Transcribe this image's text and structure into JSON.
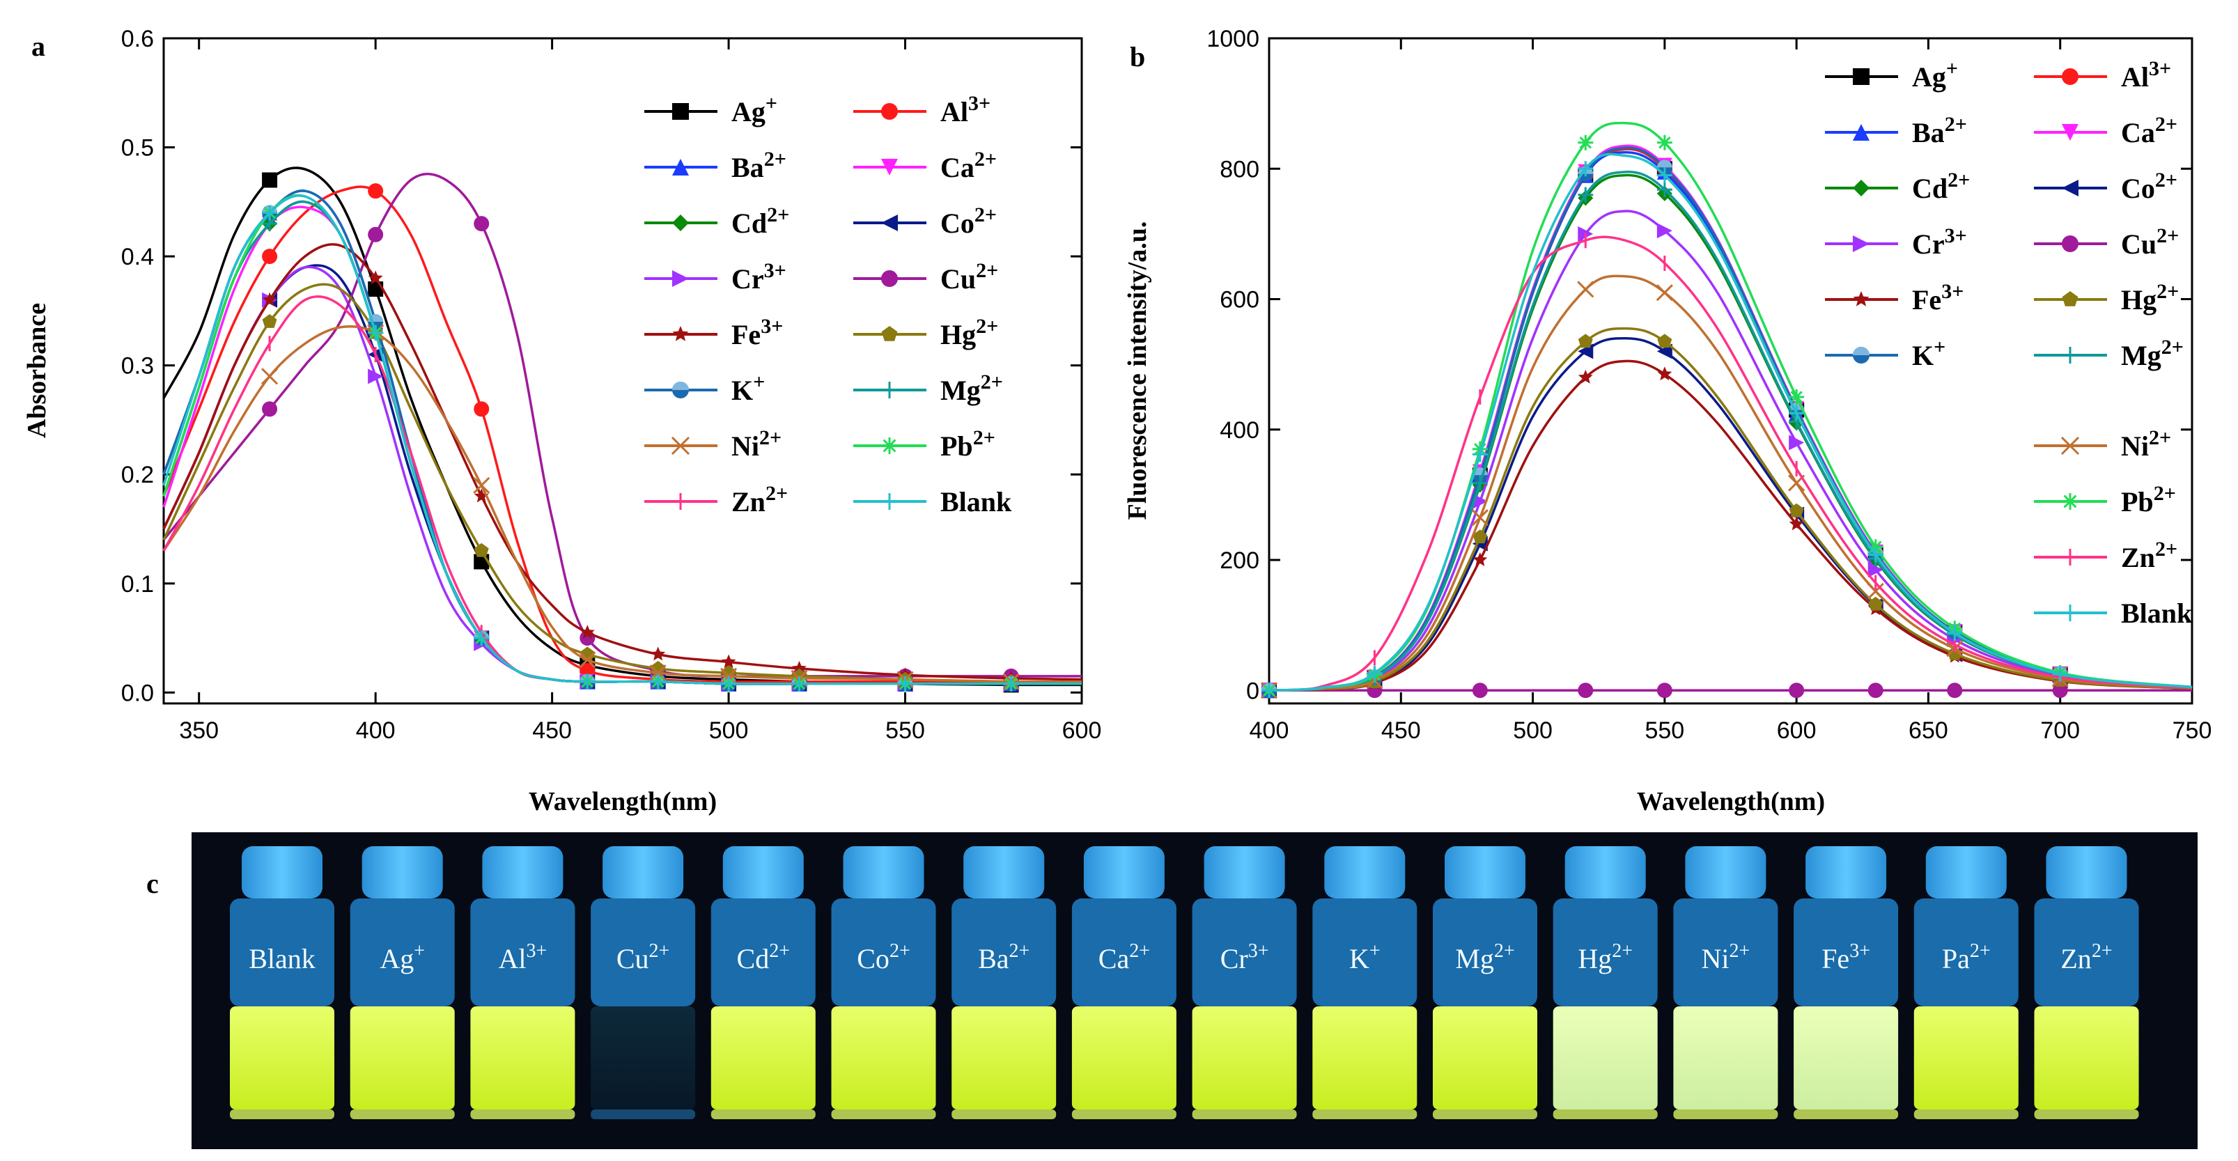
{
  "colors": {
    "Ag+": "#000000",
    "Al3+": "#ff1a1a",
    "Ba2+": "#1a3cff",
    "Ca2+": "#ff22ff",
    "Cd2+": "#0a8a0a",
    "Co2+": "#0a1a8a",
    "Cr3+": "#a033ff",
    "Cu2+": "#a01a9a",
    "Fe3+": "#a01010",
    "Hg2+": "#8a7a10",
    "K+": "#1a6ab0",
    "Mg2+": "#109a9a",
    "Ni2+": "#c07030",
    "Pb2+": "#22dd55",
    "Zn2+": "#ff3388",
    "Blank": "#22c0cc"
  },
  "chart_data": [
    {
      "id": "a",
      "type": "line",
      "panel_label": "a",
      "xlabel": "Wavelength(nm)",
      "ylabel": "Absorbance",
      "xlim": [
        340,
        600
      ],
      "ylim": [
        -0.01,
        0.6
      ],
      "xticks": [
        350,
        400,
        450,
        500,
        550,
        600
      ],
      "yticks": [
        0.0,
        0.1,
        0.2,
        0.3,
        0.4,
        0.5,
        0.6
      ],
      "ytick_labels": [
        "0.0",
        "0.1",
        "0.2",
        "0.3",
        "0.4",
        "0.5",
        "0.6"
      ],
      "x": [
        340,
        350,
        360,
        370,
        380,
        390,
        400,
        410,
        420,
        430,
        440,
        450,
        460,
        480,
        500,
        520,
        550,
        580,
        600
      ],
      "series": [
        {
          "name": "Ag+",
          "marker": "square",
          "values": [
            0.27,
            0.33,
            0.42,
            0.47,
            0.48,
            0.45,
            0.37,
            0.27,
            0.19,
            0.12,
            0.07,
            0.04,
            0.025,
            0.015,
            0.012,
            0.01,
            0.008,
            0.007,
            0.007
          ]
        },
        {
          "name": "Al3+",
          "marker": "circle",
          "values": [
            0.18,
            0.26,
            0.34,
            0.4,
            0.44,
            0.46,
            0.46,
            0.42,
            0.34,
            0.26,
            0.14,
            0.05,
            0.02,
            0.012,
            0.01,
            0.01,
            0.01,
            0.01,
            0.01
          ]
        },
        {
          "name": "Ba2+",
          "marker": "triangle-up",
          "values": [
            0.2,
            0.29,
            0.39,
            0.44,
            0.46,
            0.43,
            0.34,
            0.22,
            0.11,
            0.05,
            0.02,
            0.012,
            0.01,
            0.01,
            0.008,
            0.008,
            0.008,
            0.008,
            0.008
          ]
        },
        {
          "name": "Ca2+",
          "marker": "triangle-down",
          "values": [
            0.17,
            0.27,
            0.37,
            0.43,
            0.445,
            0.42,
            0.33,
            0.21,
            0.11,
            0.05,
            0.02,
            0.012,
            0.01,
            0.01,
            0.008,
            0.008,
            0.008,
            0.008,
            0.008
          ]
        },
        {
          "name": "Cd2+",
          "marker": "diamond",
          "values": [
            0.18,
            0.28,
            0.38,
            0.43,
            0.45,
            0.42,
            0.33,
            0.21,
            0.11,
            0.05,
            0.02,
            0.012,
            0.01,
            0.01,
            0.008,
            0.008,
            0.008,
            0.008,
            0.008
          ]
        },
        {
          "name": "Co2+",
          "marker": "triangle-left",
          "values": [
            0.15,
            0.22,
            0.3,
            0.36,
            0.39,
            0.38,
            0.31,
            0.2,
            0.11,
            0.05,
            0.02,
            0.012,
            0.01,
            0.01,
            0.008,
            0.008,
            0.008,
            0.008,
            0.008
          ]
        },
        {
          "name": "Cr3+",
          "marker": "triangle-right",
          "values": [
            0.15,
            0.22,
            0.3,
            0.36,
            0.39,
            0.37,
            0.29,
            0.18,
            0.09,
            0.045,
            0.02,
            0.012,
            0.01,
            0.01,
            0.008,
            0.008,
            0.008,
            0.008,
            0.008
          ]
        },
        {
          "name": "Cu2+",
          "marker": "circle",
          "values": [
            0.14,
            0.18,
            0.22,
            0.26,
            0.3,
            0.34,
            0.42,
            0.47,
            0.47,
            0.43,
            0.33,
            0.16,
            0.05,
            0.02,
            0.015,
            0.015,
            0.015,
            0.015,
            0.015
          ]
        },
        {
          "name": "Fe3+",
          "marker": "star",
          "values": [
            0.15,
            0.22,
            0.3,
            0.36,
            0.4,
            0.41,
            0.38,
            0.32,
            0.25,
            0.18,
            0.12,
            0.08,
            0.055,
            0.035,
            0.028,
            0.022,
            0.016,
            0.013,
            0.012
          ]
        },
        {
          "name": "Hg2+",
          "marker": "pentagon",
          "values": [
            0.14,
            0.21,
            0.28,
            0.34,
            0.37,
            0.37,
            0.33,
            0.26,
            0.19,
            0.13,
            0.08,
            0.05,
            0.035,
            0.022,
            0.018,
            0.015,
            0.012,
            0.01,
            0.01
          ]
        },
        {
          "name": "K+",
          "marker": "circle-half",
          "values": [
            0.2,
            0.29,
            0.39,
            0.44,
            0.46,
            0.43,
            0.34,
            0.22,
            0.11,
            0.05,
            0.02,
            0.012,
            0.01,
            0.01,
            0.008,
            0.008,
            0.008,
            0.008,
            0.008
          ]
        },
        {
          "name": "Mg2+",
          "marker": "plus",
          "values": [
            0.18,
            0.28,
            0.38,
            0.43,
            0.45,
            0.42,
            0.33,
            0.21,
            0.11,
            0.05,
            0.02,
            0.012,
            0.01,
            0.01,
            0.008,
            0.008,
            0.008,
            0.008,
            0.008
          ]
        },
        {
          "name": "Ni2+",
          "marker": "x",
          "values": [
            0.13,
            0.18,
            0.24,
            0.29,
            0.32,
            0.335,
            0.33,
            0.3,
            0.25,
            0.19,
            0.12,
            0.06,
            0.03,
            0.018,
            0.015,
            0.013,
            0.012,
            0.01,
            0.01
          ]
        },
        {
          "name": "Pb2+",
          "marker": "asterisk",
          "values": [
            0.18,
            0.28,
            0.38,
            0.44,
            0.455,
            0.42,
            0.33,
            0.21,
            0.11,
            0.05,
            0.02,
            0.012,
            0.01,
            0.01,
            0.008,
            0.008,
            0.008,
            0.008,
            0.008
          ]
        },
        {
          "name": "Zn2+",
          "marker": "bar",
          "values": [
            0.13,
            0.19,
            0.26,
            0.32,
            0.36,
            0.355,
            0.31,
            0.22,
            0.12,
            0.055,
            0.02,
            0.012,
            0.01,
            0.01,
            0.008,
            0.008,
            0.008,
            0.008,
            0.008
          ]
        },
        {
          "name": "Blank",
          "marker": "plus",
          "values": [
            0.19,
            0.29,
            0.39,
            0.44,
            0.455,
            0.42,
            0.33,
            0.21,
            0.11,
            0.05,
            0.02,
            0.012,
            0.01,
            0.01,
            0.008,
            0.008,
            0.008,
            0.008,
            0.008
          ]
        }
      ],
      "legend": [
        {
          "base": "Ag",
          "sup": "+"
        },
        {
          "base": "Al",
          "sup": "3+"
        },
        {
          "base": "Ba",
          "sup": "2+"
        },
        {
          "base": "Ca",
          "sup": "2+"
        },
        {
          "base": "Cd",
          "sup": "2+"
        },
        {
          "base": "Co",
          "sup": "2+"
        },
        {
          "base": "Cr",
          "sup": "3+"
        },
        {
          "base": "Cu",
          "sup": "2+"
        },
        {
          "base": "Fe",
          "sup": "3+"
        },
        {
          "base": "Hg",
          "sup": "2+"
        },
        {
          "base": "K",
          "sup": "+"
        },
        {
          "base": "Mg",
          "sup": "2+"
        },
        {
          "base": "Ni",
          "sup": "2+"
        },
        {
          "base": "Pb",
          "sup": "2+"
        },
        {
          "base": "Zn",
          "sup": "2+"
        },
        {
          "base": "Blank",
          "sup": ""
        }
      ]
    },
    {
      "id": "b",
      "type": "line",
      "panel_label": "b",
      "xlabel": "Wavelength(nm)",
      "ylabel": "Fluorescence intensity/a.u.",
      "xlim": [
        400,
        750
      ],
      "ylim": [
        -20,
        1000
      ],
      "xticks": [
        400,
        450,
        500,
        550,
        600,
        650,
        700,
        750
      ],
      "yticks": [
        0,
        200,
        400,
        600,
        800,
        1000
      ],
      "x": [
        400,
        420,
        440,
        460,
        480,
        500,
        520,
        535,
        550,
        570,
        600,
        630,
        660,
        700,
        750
      ],
      "series": [
        {
          "name": "Ag+",
          "marker": "square",
          "values": [
            0,
            3,
            20,
            110,
            330,
            610,
            790,
            830,
            800,
            690,
            430,
            210,
            90,
            25,
            5
          ]
        },
        {
          "name": "Al3+",
          "marker": "circle",
          "values": [
            0,
            3,
            20,
            110,
            330,
            610,
            790,
            830,
            800,
            690,
            430,
            210,
            90,
            25,
            5
          ]
        },
        {
          "name": "Ba2+",
          "marker": "triangle-up",
          "values": [
            0,
            3,
            20,
            110,
            330,
            610,
            790,
            825,
            795,
            685,
            425,
            208,
            88,
            25,
            5
          ]
        },
        {
          "name": "Ca2+",
          "marker": "triangle-down",
          "values": [
            0,
            3,
            20,
            112,
            335,
            615,
            795,
            835,
            805,
            692,
            432,
            212,
            90,
            25,
            5
          ]
        },
        {
          "name": "Cd2+",
          "marker": "diamond",
          "values": [
            0,
            3,
            19,
            105,
            315,
            585,
            755,
            790,
            762,
            655,
            410,
            200,
            85,
            24,
            5
          ]
        },
        {
          "name": "Co2+",
          "marker": "triangle-left",
          "values": [
            0,
            2,
            12,
            70,
            225,
            420,
            520,
            540,
            520,
            440,
            270,
            130,
            55,
            15,
            3
          ]
        },
        {
          "name": "Cr3+",
          "marker": "triangle-right",
          "values": [
            0,
            3,
            17,
            95,
            290,
            540,
            700,
            735,
            705,
            610,
            380,
            185,
            78,
            22,
            4
          ]
        },
        {
          "name": "Cu2+",
          "marker": "circle",
          "values": [
            0,
            0,
            0,
            0,
            0,
            0,
            0,
            0,
            0,
            0,
            0,
            0,
            0,
            0,
            0
          ]
        },
        {
          "name": "Fe3+",
          "marker": "star",
          "values": [
            0,
            2,
            11,
            62,
            200,
            375,
            480,
            505,
            485,
            410,
            255,
            125,
            52,
            14,
            3
          ]
        },
        {
          "name": "Hg2+",
          "marker": "pentagon",
          "values": [
            0,
            2,
            13,
            75,
            235,
            435,
            535,
            555,
            535,
            450,
            275,
            132,
            56,
            15,
            3
          ]
        },
        {
          "name": "K+",
          "marker": "circle-half",
          "values": [
            0,
            3,
            20,
            110,
            330,
            612,
            792,
            832,
            802,
            690,
            430,
            210,
            90,
            25,
            5
          ]
        },
        {
          "name": "Mg2+",
          "marker": "plus",
          "values": [
            0,
            3,
            19,
            105,
            318,
            590,
            760,
            795,
            768,
            660,
            412,
            202,
            86,
            24,
            5
          ]
        },
        {
          "name": "Ni2+",
          "marker": "x",
          "values": [
            0,
            3,
            15,
            85,
            265,
            495,
            615,
            635,
            610,
            520,
            318,
            152,
            64,
            18,
            4
          ]
        },
        {
          "name": "Pb2+",
          "marker": "asterisk",
          "values": [
            0,
            4,
            24,
            125,
            370,
            675,
            840,
            870,
            840,
            720,
            450,
            220,
            95,
            27,
            5
          ]
        },
        {
          "name": "Zn2+",
          "marker": "bar",
          "values": [
            0,
            6,
            50,
            210,
            450,
            640,
            690,
            690,
            655,
            555,
            340,
            165,
            70,
            20,
            4
          ]
        },
        {
          "name": "Blank",
          "marker": "plus",
          "values": [
            0,
            4,
            26,
            128,
            362,
            640,
            800,
            820,
            790,
            680,
            425,
            208,
            88,
            25,
            5
          ]
        }
      ],
      "legend": [
        {
          "base": "Ag",
          "sup": "+"
        },
        {
          "base": "Al",
          "sup": "3+"
        },
        {
          "base": "Ba",
          "sup": "2+"
        },
        {
          "base": "Ca",
          "sup": "2+"
        },
        {
          "base": "Cd",
          "sup": "2+"
        },
        {
          "base": "Co",
          "sup": "2+"
        },
        {
          "base": "Cr",
          "sup": "3+"
        },
        {
          "base": "Cu",
          "sup": "2+"
        },
        {
          "base": "Fe",
          "sup": "3+"
        },
        {
          "base": "Hg",
          "sup": "2+"
        },
        {
          "base": "K",
          "sup": "+"
        },
        {
          "base": "Mg",
          "sup": "2+"
        },
        {
          "base": "Ni",
          "sup": "2+"
        },
        {
          "base": "Pb",
          "sup": "2+"
        },
        {
          "base": "Zn",
          "sup": "2+"
        },
        {
          "base": "Blank",
          "sup": ""
        }
      ]
    }
  ],
  "photo": {
    "panel_label": "c",
    "vials": [
      {
        "base": "Blank",
        "sup": "",
        "tone": "bright"
      },
      {
        "base": "Ag",
        "sup": "+",
        "tone": "bright"
      },
      {
        "base": "Al",
        "sup": "3+",
        "tone": "bright"
      },
      {
        "base": "Cu",
        "sup": "2+",
        "tone": "dark"
      },
      {
        "base": "Cd",
        "sup": "2+",
        "tone": "bright"
      },
      {
        "base": "Co",
        "sup": "2+",
        "tone": "bright"
      },
      {
        "base": "Ba",
        "sup": "2+",
        "tone": "bright"
      },
      {
        "base": "Ca",
        "sup": "2+",
        "tone": "bright"
      },
      {
        "base": "Cr",
        "sup": "3+",
        "tone": "bright"
      },
      {
        "base": "K",
        "sup": "+",
        "tone": "bright"
      },
      {
        "base": "Mg",
        "sup": "2+",
        "tone": "bright"
      },
      {
        "base": "Hg",
        "sup": "2+",
        "tone": "pale"
      },
      {
        "base": "Ni",
        "sup": "2+",
        "tone": "pale"
      },
      {
        "base": "Fe",
        "sup": "3+",
        "tone": "pale"
      },
      {
        "base": "Pa",
        "sup": "2+",
        "tone": "bright"
      },
      {
        "base": "Zn",
        "sup": "2+",
        "tone": "bright"
      }
    ]
  }
}
